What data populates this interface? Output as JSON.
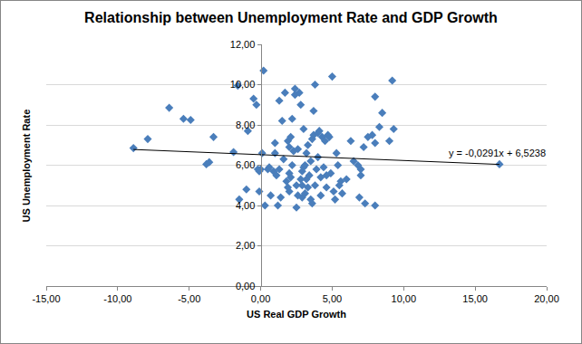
{
  "chart_data": {
    "type": "scatter",
    "title": "Relationship between Unemployment Rate and GDP Growth",
    "x_label": "US Real GDP Growth",
    "y_label": "US Unemployment Rate",
    "color": "#4a7ebb",
    "marker": "diamond",
    "grid": true,
    "x": [
      -8.9,
      -7.9,
      -6.4,
      -5.4,
      -4.9,
      -3.8,
      -3.6,
      -3.3,
      -1.9,
      -1.6,
      -1.5,
      -1.0,
      -0.9,
      -0.5,
      -0.3,
      -0.2,
      -0.1,
      0.2,
      0.3,
      0.1,
      0.5,
      0.7,
      0.9,
      1.0,
      1.1,
      1.2,
      1.3,
      1.5,
      1.6,
      1.7,
      1.8,
      1.9,
      2.0,
      2.0,
      2.1,
      2.2,
      2.2,
      2.3,
      2.4,
      2.4,
      2.5,
      2.5,
      2.6,
      2.7,
      2.8,
      2.9,
      2.9,
      3.0,
      3.0,
      3.1,
      3.2,
      3.2,
      3.3,
      3.4,
      3.5,
      3.5,
      3.6,
      3.7,
      3.7,
      3.8,
      3.8,
      3.9,
      4.0,
      4.0,
      4.1,
      4.2,
      4.2,
      4.3,
      4.4,
      4.5,
      4.6,
      4.7,
      4.8,
      4.9,
      5.0,
      5.1,
      5.2,
      5.3,
      5.4,
      5.5,
      5.6,
      5.7,
      6.0,
      6.3,
      6.5,
      6.8,
      6.9,
      7.0,
      7.0,
      7.2,
      7.3,
      7.5,
      7.8,
      8.0,
      8.0,
      8.0,
      8.3,
      8.5,
      9.0,
      9.2,
      9.3,
      16.7,
      1.4,
      1.9,
      2.1,
      2.6,
      2.8,
      3.1,
      3.3,
      3.6,
      4.6,
      1.0,
      0.6,
      2.0,
      1.3,
      2.9,
      0.0,
      -0.1
    ],
    "values": [
      6.85,
      7.3,
      8.85,
      8.3,
      8.25,
      6.05,
      6.15,
      7.4,
      6.65,
      9.95,
      4.3,
      4.8,
      7.7,
      9.3,
      9.0,
      5.8,
      4.7,
      10.7,
      4.0,
      6.6,
      5.8,
      4.5,
      5.7,
      7.1,
      5.5,
      4.0,
      5.8,
      8.2,
      6.3,
      9.6,
      5.2,
      7.2,
      5.6,
      4.7,
      7.4,
      8.3,
      6.0,
      6.7,
      9.5,
      9.8,
      5.0,
      3.9,
      6.8,
      9.6,
      9.0,
      4.4,
      5.7,
      5.9,
      7.8,
      4.6,
      5.3,
      6.6,
      7.0,
      5.5,
      4.3,
      6.2,
      7.3,
      7.5,
      8.7,
      10.0,
      5.0,
      5.8,
      6.4,
      7.6,
      7.7,
      4.5,
      5.4,
      7.4,
      5.9,
      7.2,
      4.9,
      7.5,
      7.4,
      5.6,
      10.4,
      4.7,
      4.3,
      6.6,
      6.0,
      5.0,
      5.2,
      4.6,
      5.3,
      7.2,
      6.2,
      6.0,
      4.4,
      5.5,
      5.8,
      6.9,
      4.1,
      7.4,
      7.5,
      7.1,
      4.0,
      9.4,
      7.9,
      8.6,
      7.2,
      10.2,
      7.8,
      6.05,
      4.4,
      4.9,
      5.4,
      4.5,
      5.3,
      6.0,
      4.9,
      4.1,
      5.5,
      6.6,
      5.9,
      6.9,
      9.2,
      5.0,
      5.8,
      5.7
    ],
    "trendline": {
      "x": [
        -8.9,
        16.7
      ],
      "values": [
        6.78,
        6.04
      ],
      "color": "#000000",
      "line_style": "solid"
    },
    "annotations": [
      "y = -0,0291x + 6,5238"
    ],
    "xlim": [
      -15,
      20
    ],
    "xticks": [
      {
        "value": -15,
        "label": "-15,00"
      },
      {
        "value": -10,
        "label": "-10,00"
      },
      {
        "value": -5,
        "label": "-5,00"
      },
      {
        "value": 0,
        "label": "0,00"
      },
      {
        "value": 5,
        "label": "5,00"
      },
      {
        "value": 10,
        "label": "10,00"
      },
      {
        "value": 15,
        "label": "15,00"
      },
      {
        "value": 20,
        "label": "20,00"
      }
    ],
    "ylim": [
      0,
      12
    ],
    "yticks": [
      {
        "value": 0,
        "label": "0,00"
      },
      {
        "value": 2,
        "label": "2,00"
      },
      {
        "value": 4,
        "label": "4,00"
      },
      {
        "value": 6,
        "label": "6,00"
      },
      {
        "value": 8,
        "label": "8,00"
      },
      {
        "value": 10,
        "label": "10,00"
      },
      {
        "value": 12,
        "label": "12,00"
      }
    ]
  }
}
